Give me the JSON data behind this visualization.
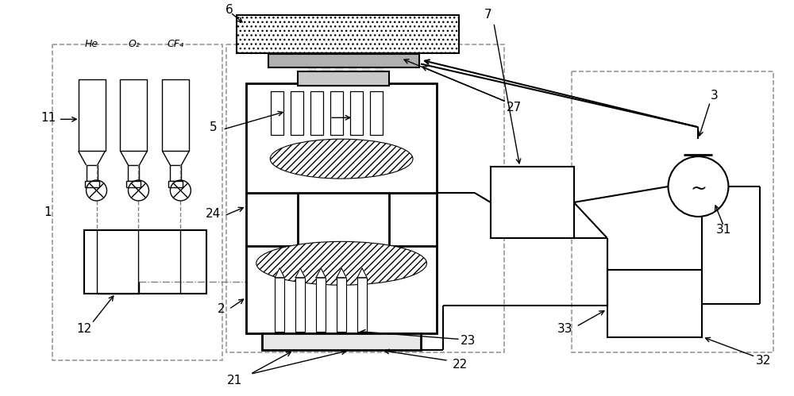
{
  "bg_color": "#ffffff",
  "fig_width": 10.0,
  "fig_height": 4.99,
  "dpi": 100,
  "gas_labels": [
    "He",
    "O₂",
    "CF₄"
  ]
}
